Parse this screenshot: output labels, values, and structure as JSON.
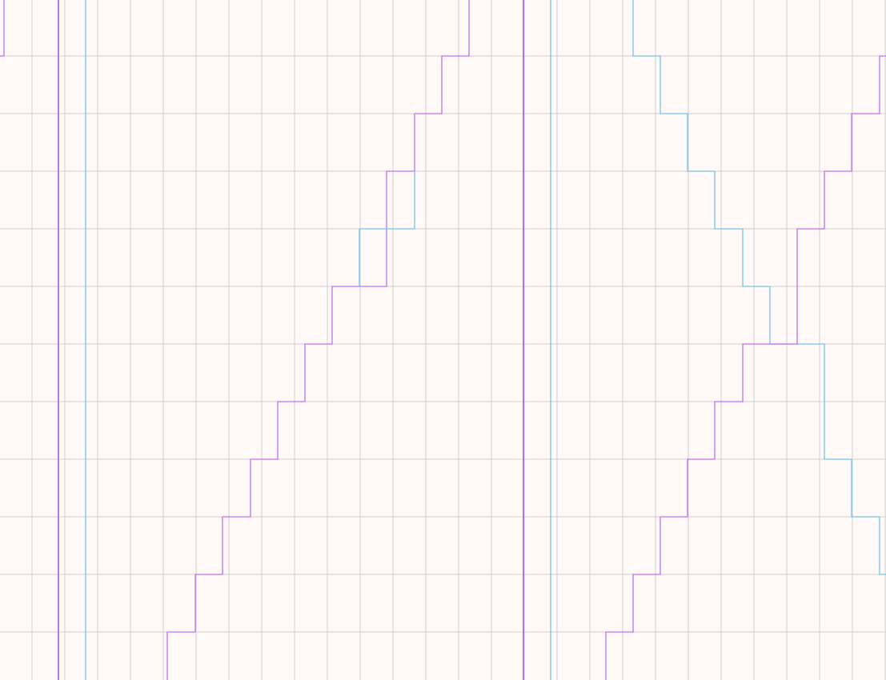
{
  "colors": {
    "background": "#fff9f7",
    "grid": "#cfcfcf",
    "magenta_trace": "#c070f0",
    "violet_trace": "#9a5ce8",
    "blue_trace": "#74c4ec"
  }
}
